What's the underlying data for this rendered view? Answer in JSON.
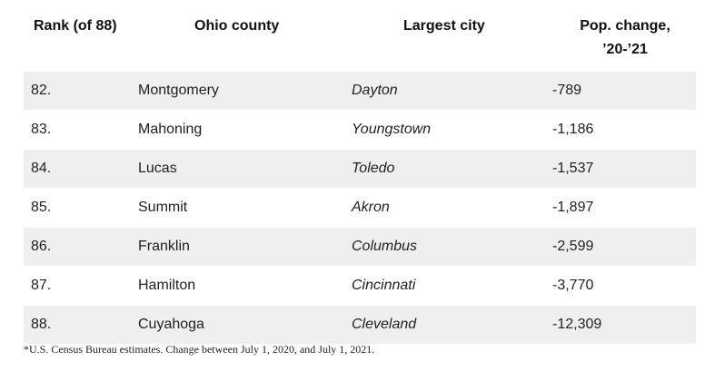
{
  "headers": {
    "rank": "Rank (of 88)",
    "county": "Ohio county",
    "city": "Largest city",
    "change_line1": "Pop. change,",
    "change_line2": "’20-’21"
  },
  "rows": [
    {
      "rank": "82.",
      "county": "Montgomery",
      "city": "Dayton",
      "change": "-789"
    },
    {
      "rank": "83.",
      "county": "Mahoning",
      "city": "Youngstown",
      "change": "-1,186"
    },
    {
      "rank": "84.",
      "county": "Lucas",
      "city": "Toledo",
      "change": "-1,537"
    },
    {
      "rank": "85.",
      "county": "Summit",
      "city": "Akron",
      "change": "-1,897"
    },
    {
      "rank": "86.",
      "county": "Franklin",
      "city": "Columbus",
      "change": "-2,599"
    },
    {
      "rank": "87.",
      "county": "Hamilton",
      "city": "Cincinnati",
      "change": "-3,770"
    },
    {
      "rank": "88.",
      "county": "Cuyahoga",
      "city": "Cleveland",
      "change": "-12,309"
    }
  ],
  "footnote": "*U.S. Census Bureau estimates. Change between July 1, 2020, and July 1, 2021.",
  "colors": {
    "shaded_row": "#efefef",
    "text": "#1f1f1f"
  }
}
